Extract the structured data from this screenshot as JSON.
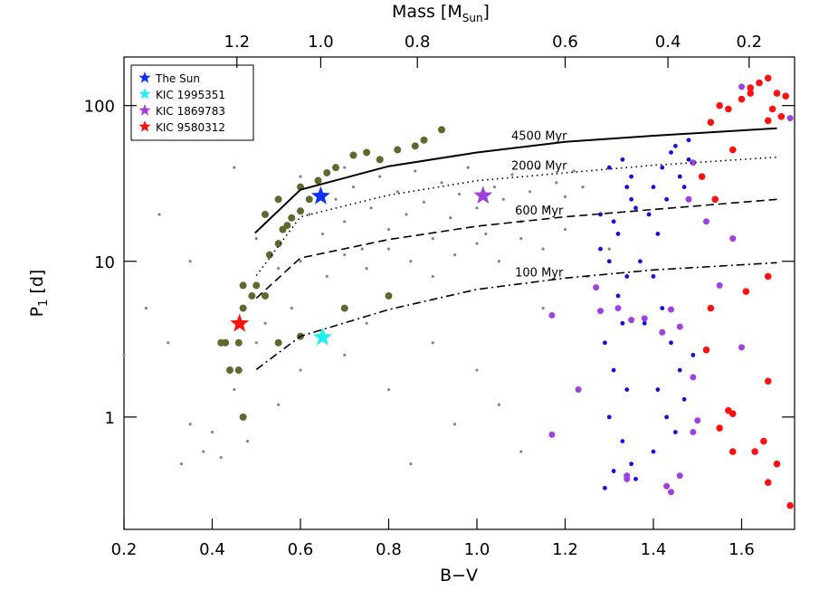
{
  "chart_data": {
    "type": "scatter",
    "xlabel": "B−V",
    "ylabel": "P",
    "ylabel_sub": "1",
    "ylabel_unit": "[d]",
    "x2label": "Mass [M",
    "x2label_sub": "Sun",
    "x2label_end": "]",
    "xlim": [
      0.2,
      1.72
    ],
    "ylim": [
      0.19,
      205
    ],
    "log_y": true,
    "xticks": [
      0.2,
      0.4,
      0.6,
      0.8,
      {
        "value": 1.0,
        "label": "1.0"
      },
      1.2,
      1.4,
      1.6
    ],
    "yticks": [
      1,
      10,
      100
    ],
    "x2ticks": [
      1.2,
      {
        "value": 1.0,
        "label": "1.0"
      },
      0.8,
      0.6,
      0.4,
      0.2
    ],
    "x2_bv": [
      0.456,
      0.646,
      0.865,
      1.2,
      1.433,
      1.617
    ],
    "series": [
      {
        "color": "#7b8794",
        "size": 1.6,
        "x": [
          0.62,
          0.65,
          0.68,
          0.7,
          0.72,
          0.74,
          0.76,
          0.78,
          0.8,
          0.82,
          0.84,
          0.86,
          0.88,
          0.9,
          0.92,
          0.94,
          0.96,
          0.98,
          1.0,
          1.02,
          1.04,
          1.06,
          1.08,
          1.1,
          1.12,
          1.14,
          1.16,
          1.18,
          1.2,
          1.22,
          1.24,
          0.6,
          0.66,
          0.7,
          0.75,
          0.8,
          0.85,
          0.9,
          0.95,
          1.0,
          1.05,
          1.1,
          1.15,
          1.2,
          0.55,
          0.58,
          0.52,
          0.5,
          0.45,
          0.4,
          0.38,
          0.42,
          0.48,
          0.35,
          0.33,
          0.55,
          0.6,
          0.65,
          0.7,
          0.75,
          0.8,
          0.9,
          0.95,
          1.0,
          1.05,
          1.1,
          0.85,
          0.3,
          0.25,
          0.35,
          0.5,
          0.55,
          0.6,
          0.7,
          0.45,
          1.15,
          1.25,
          1.3,
          0.2,
          0.28
        ],
        "y": [
          20,
          15,
          25,
          18,
          30,
          12,
          22,
          35,
          16,
          28,
          20,
          38,
          24,
          14,
          32,
          19,
          27,
          40,
          22,
          15,
          30,
          25,
          36,
          18,
          28,
          40,
          22,
          32,
          26,
          38,
          30,
          10,
          8,
          11,
          9,
          12,
          10,
          8,
          11,
          13,
          10,
          14,
          12,
          16,
          9,
          5,
          4,
          3,
          1.5,
          0.8,
          0.6,
          0.55,
          0.7,
          0.9,
          0.5,
          1.2,
          2,
          3.5,
          2.5,
          4,
          1.5,
          3,
          0.9,
          2,
          1.2,
          0.6,
          0.5,
          3,
          5,
          10,
          14,
          25,
          35,
          40,
          40,
          5,
          8,
          12,
          2.5,
          20
        ]
      },
      {
        "color": "#5b6b2e",
        "size": 4,
        "x": [
          0.47,
          0.46,
          0.44,
          0.42,
          0.43,
          0.46,
          0.47,
          0.47,
          0.49,
          0.5,
          0.52,
          0.53,
          0.55,
          0.56,
          0.57,
          0.58,
          0.6,
          0.62,
          0.64,
          0.66,
          0.68,
          0.52,
          0.55,
          0.6,
          0.72,
          0.75,
          0.78,
          0.82,
          0.86,
          0.88,
          0.92,
          0.55,
          0.6,
          0.7,
          0.8
        ],
        "y": [
          1,
          2,
          2,
          3,
          3,
          3,
          5,
          7,
          6,
          7,
          6,
          11,
          13,
          16,
          17,
          19,
          21,
          25,
          33,
          37,
          40,
          20,
          25,
          30,
          48,
          50,
          45,
          52,
          55,
          60,
          70,
          3,
          3.3,
          5,
          6
        ]
      },
      {
        "color": "#1010e0",
        "size": 2.4,
        "x": [
          1.28,
          1.3,
          1.32,
          1.34,
          1.35,
          1.3,
          1.32,
          1.33,
          1.29,
          1.31,
          1.34,
          1.3,
          1.33,
          1.35,
          1.31,
          1.36,
          1.29,
          1.35,
          1.33,
          1.28,
          1.31,
          1.36,
          1.4,
          1.42,
          1.44,
          1.46,
          1.48,
          1.45,
          1.39,
          1.41,
          1.43,
          1.47,
          1.4,
          1.42,
          1.44,
          1.46,
          1.41,
          1.43,
          1.45,
          1.4,
          1.47,
          1.38,
          1.49,
          1.48,
          1.37,
          1.34
        ],
        "y": [
          20,
          40,
          15,
          30,
          25,
          10,
          6,
          4,
          3,
          2,
          1.5,
          1,
          0.7,
          0.5,
          0.45,
          0.4,
          0.35,
          35,
          45,
          12,
          18,
          22,
          30,
          40,
          50,
          35,
          45,
          55,
          20,
          15,
          25,
          30,
          8,
          5,
          3,
          2,
          1.5,
          1,
          0.8,
          0.6,
          1.3,
          4,
          2.5,
          60,
          10,
          8
        ]
      },
      {
        "color": "#a040e0",
        "size": 3.5,
        "x": [
          1.27,
          1.28,
          1.17,
          1.23,
          1.17,
          1.32,
          1.35,
          1.38,
          1.42,
          1.44,
          1.46,
          1.49,
          1.5,
          1.49,
          1.43,
          1.44,
          1.46,
          1.34,
          1.48,
          1.52,
          1.55,
          1.6,
          1.58,
          1.49,
          1.6,
          1.71,
          1.34
        ],
        "y": [
          6.8,
          4.8,
          4.5,
          1.5,
          0.77,
          5,
          4.2,
          4.3,
          3.5,
          4.9,
          3.8,
          1.8,
          0.95,
          0.8,
          0.36,
          0.33,
          0.42,
          0.42,
          25,
          18,
          7,
          2.8,
          14,
          43,
          132,
          83,
          0.4
        ]
      },
      {
        "color": "#ff1010",
        "size": 3.8,
        "x": [
          1.55,
          1.57,
          1.6,
          1.62,
          1.64,
          1.66,
          1.68,
          1.7,
          1.67,
          1.69,
          1.66,
          1.58,
          1.53,
          1.51,
          1.54,
          1.66,
          1.61,
          1.53,
          1.52,
          1.55,
          1.57,
          1.58,
          1.66,
          1.58,
          1.63,
          1.65,
          1.68,
          1.66,
          1.71,
          1.62
        ],
        "y": [
          100,
          95,
          110,
          130,
          140,
          150,
          120,
          115,
          95,
          85,
          80,
          52,
          78,
          35,
          25,
          8,
          6.4,
          5,
          2.7,
          0.85,
          1.1,
          1.05,
          1.7,
          0.6,
          0.6,
          0.7,
          0.5,
          0.38,
          0.27,
          120
        ]
      },
      {
        "name": "The Sun",
        "marker": "star",
        "color": "#1030ff",
        "x": [
          0.646
        ],
        "y": [
          26.2
        ]
      },
      {
        "name": "KIC 1995351",
        "marker": "star",
        "color": "#20f0f0",
        "x": [
          0.65
        ],
        "y": [
          3.25
        ]
      },
      {
        "name": "KIC 1869783",
        "marker": "star",
        "color": "#a040e0",
        "x": [
          1.014
        ],
        "y": [
          26.4
        ]
      },
      {
        "name": "KIC 9580312",
        "marker": "star",
        "color": "#ff1010",
        "x": [
          0.462
        ],
        "y": [
          3.98
        ]
      }
    ],
    "isochrones": [
      {
        "name": "4500 Myr",
        "dash": "none",
        "x": [
          0.497,
          0.6,
          0.8,
          1.0,
          1.2,
          1.4,
          1.68
        ],
        "y": [
          15.2,
          28.8,
          40.8,
          50,
          58.5,
          64,
          71.5
        ]
      },
      {
        "name": "2000 Myr",
        "dash": "1.5 4",
        "x": [
          0.5,
          0.6,
          0.8,
          1.0,
          1.2,
          1.4,
          1.68
        ],
        "y": [
          8.1,
          19.3,
          26.6,
          32.9,
          37,
          41.4,
          46.6
        ]
      },
      {
        "name": "600 Myr",
        "dash": "9 5",
        "x": [
          0.5,
          0.6,
          0.8,
          1.0,
          1.2,
          1.4,
          1.68
        ],
        "y": [
          5.8,
          10.5,
          13.8,
          16.8,
          19.3,
          21.5,
          25
        ]
      },
      {
        "name": "100 Myr",
        "dash": "9 4 2 4",
        "x": [
          0.5,
          0.6,
          0.8,
          1.0,
          1.2,
          1.4,
          1.68
        ],
        "y": [
          2.02,
          3.3,
          4.9,
          6.6,
          7.8,
          8.8,
          9.8
        ]
      }
    ]
  }
}
